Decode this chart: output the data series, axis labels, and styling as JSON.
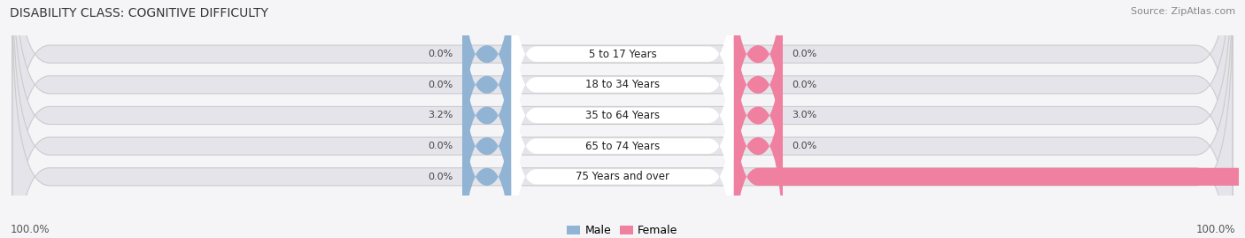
{
  "title": "DISABILITY CLASS: COGNITIVE DIFFICULTY",
  "source": "Source: ZipAtlas.com",
  "categories": [
    "5 to 17 Years",
    "18 to 34 Years",
    "35 to 64 Years",
    "65 to 74 Years",
    "75 Years and over"
  ],
  "male_values": [
    0.0,
    0.0,
    3.2,
    0.0,
    0.0
  ],
  "female_values": [
    0.0,
    0.0,
    3.0,
    0.0,
    100.0
  ],
  "male_color": "#92b4d4",
  "female_color": "#f080a0",
  "bar_bg_color": "#e4e4ea",
  "max_value": 100.0,
  "legend_male": "Male",
  "legend_female": "Female",
  "left_label": "100.0%",
  "right_label": "100.0%",
  "title_fontsize": 10,
  "source_fontsize": 8,
  "label_fontsize": 8.5,
  "value_fontsize": 8,
  "bg_color": "#f5f5f8",
  "bar_bg_outer": "#dcdce4"
}
